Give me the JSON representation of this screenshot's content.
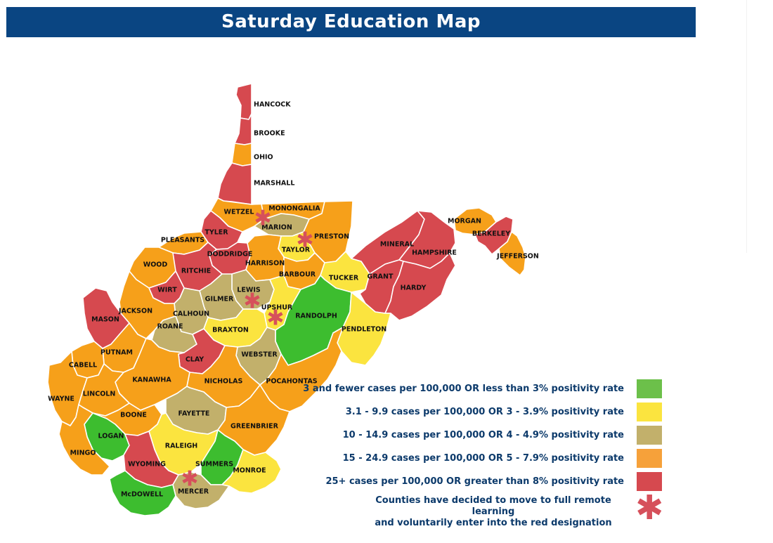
{
  "title": "Saturday Education Map",
  "colors": {
    "green": "#3dbd2f",
    "yellow": "#fbe43f",
    "khaki": "#c2b06b",
    "orange": "#f6a01a",
    "red": "#d6494f",
    "title_bg": "#0a4582",
    "legend_text": "#0c3a6b"
  },
  "legend": [
    {
      "label": "3 and fewer cases per 100,000 OR less than 3% positivity rate",
      "color": "#6cc04a"
    },
    {
      "label": "3.1 - 9.9 cases per 100,000 OR 3 - 3.9% positivity rate",
      "color": "#fbe43f"
    },
    {
      "label": "10 - 14.9 cases per 100,000 OR 4 - 4.9% positivity rate",
      "color": "#c2b06b"
    },
    {
      "label": "15 - 24.9 cases per 100,000 OR 5 - 7.9% positivity rate",
      "color": "#f6a13a"
    },
    {
      "label": "25+ cases per 100,000 OR greater than 8% positivity rate",
      "color": "#d6494f"
    }
  ],
  "remote_legend": {
    "line1": "Counties have decided to move to full remote learning",
    "line2": "and voluntarily enter into the red designation",
    "icon": "asterisk-icon"
  },
  "counties": [
    {
      "name": "HANCOCK",
      "status": "red"
    },
    {
      "name": "BROOKE",
      "status": "red"
    },
    {
      "name": "OHIO",
      "status": "orange"
    },
    {
      "name": "MARSHALL",
      "status": "red"
    },
    {
      "name": "WETZEL",
      "status": "orange"
    },
    {
      "name": "MONONGALIA",
      "status": "orange"
    },
    {
      "name": "MARION",
      "status": "khaki",
      "remote": true
    },
    {
      "name": "PRESTON",
      "status": "orange"
    },
    {
      "name": "TYLER",
      "status": "red"
    },
    {
      "name": "PLEASANTS",
      "status": "orange"
    },
    {
      "name": "DODDRIDGE",
      "status": "red"
    },
    {
      "name": "TAYLOR",
      "status": "yellow",
      "remote": true
    },
    {
      "name": "HARRISON",
      "status": "orange"
    },
    {
      "name": "WOOD",
      "status": "orange"
    },
    {
      "name": "RITCHIE",
      "status": "red"
    },
    {
      "name": "BARBOUR",
      "status": "orange"
    },
    {
      "name": "TUCKER",
      "status": "yellow"
    },
    {
      "name": "MINERAL",
      "status": "red"
    },
    {
      "name": "HAMPSHIRE",
      "status": "red"
    },
    {
      "name": "MORGAN",
      "status": "orange"
    },
    {
      "name": "BERKELEY",
      "status": "red"
    },
    {
      "name": "JEFFERSON",
      "status": "orange"
    },
    {
      "name": "GRANT",
      "status": "red"
    },
    {
      "name": "HARDY",
      "status": "red"
    },
    {
      "name": "WIRT",
      "status": "red"
    },
    {
      "name": "LEWIS",
      "status": "khaki",
      "remote": true
    },
    {
      "name": "GILMER",
      "status": "khaki"
    },
    {
      "name": "CALHOUN",
      "status": "khaki"
    },
    {
      "name": "UPSHUR",
      "status": "yellow",
      "remote": true
    },
    {
      "name": "RANDOLPH",
      "status": "green"
    },
    {
      "name": "JACKSON",
      "status": "orange"
    },
    {
      "name": "ROANE",
      "status": "khaki"
    },
    {
      "name": "MASON",
      "status": "red"
    },
    {
      "name": "BRAXTON",
      "status": "yellow"
    },
    {
      "name": "PENDLETON",
      "status": "yellow"
    },
    {
      "name": "PUTNAM",
      "status": "orange"
    },
    {
      "name": "WEBSTER",
      "status": "khaki"
    },
    {
      "name": "CABELL",
      "status": "orange"
    },
    {
      "name": "CLAY",
      "status": "red"
    },
    {
      "name": "KANAWHA",
      "status": "orange"
    },
    {
      "name": "NICHOLAS",
      "status": "orange"
    },
    {
      "name": "POCAHONTAS",
      "status": "orange"
    },
    {
      "name": "WAYNE",
      "status": "orange"
    },
    {
      "name": "LINCOLN",
      "status": "orange"
    },
    {
      "name": "BOONE",
      "status": "orange"
    },
    {
      "name": "FAYETTE",
      "status": "khaki"
    },
    {
      "name": "GREENBRIER",
      "status": "orange"
    },
    {
      "name": "LOGAN",
      "status": "green"
    },
    {
      "name": "MINGO",
      "status": "orange"
    },
    {
      "name": "RALEIGH",
      "status": "yellow"
    },
    {
      "name": "WYOMING",
      "status": "red"
    },
    {
      "name": "SUMMERS",
      "status": "green"
    },
    {
      "name": "MONROE",
      "status": "yellow"
    },
    {
      "name": "MERCER",
      "status": "khaki",
      "remote": true
    },
    {
      "name": "McDOWELL",
      "status": "green"
    }
  ]
}
